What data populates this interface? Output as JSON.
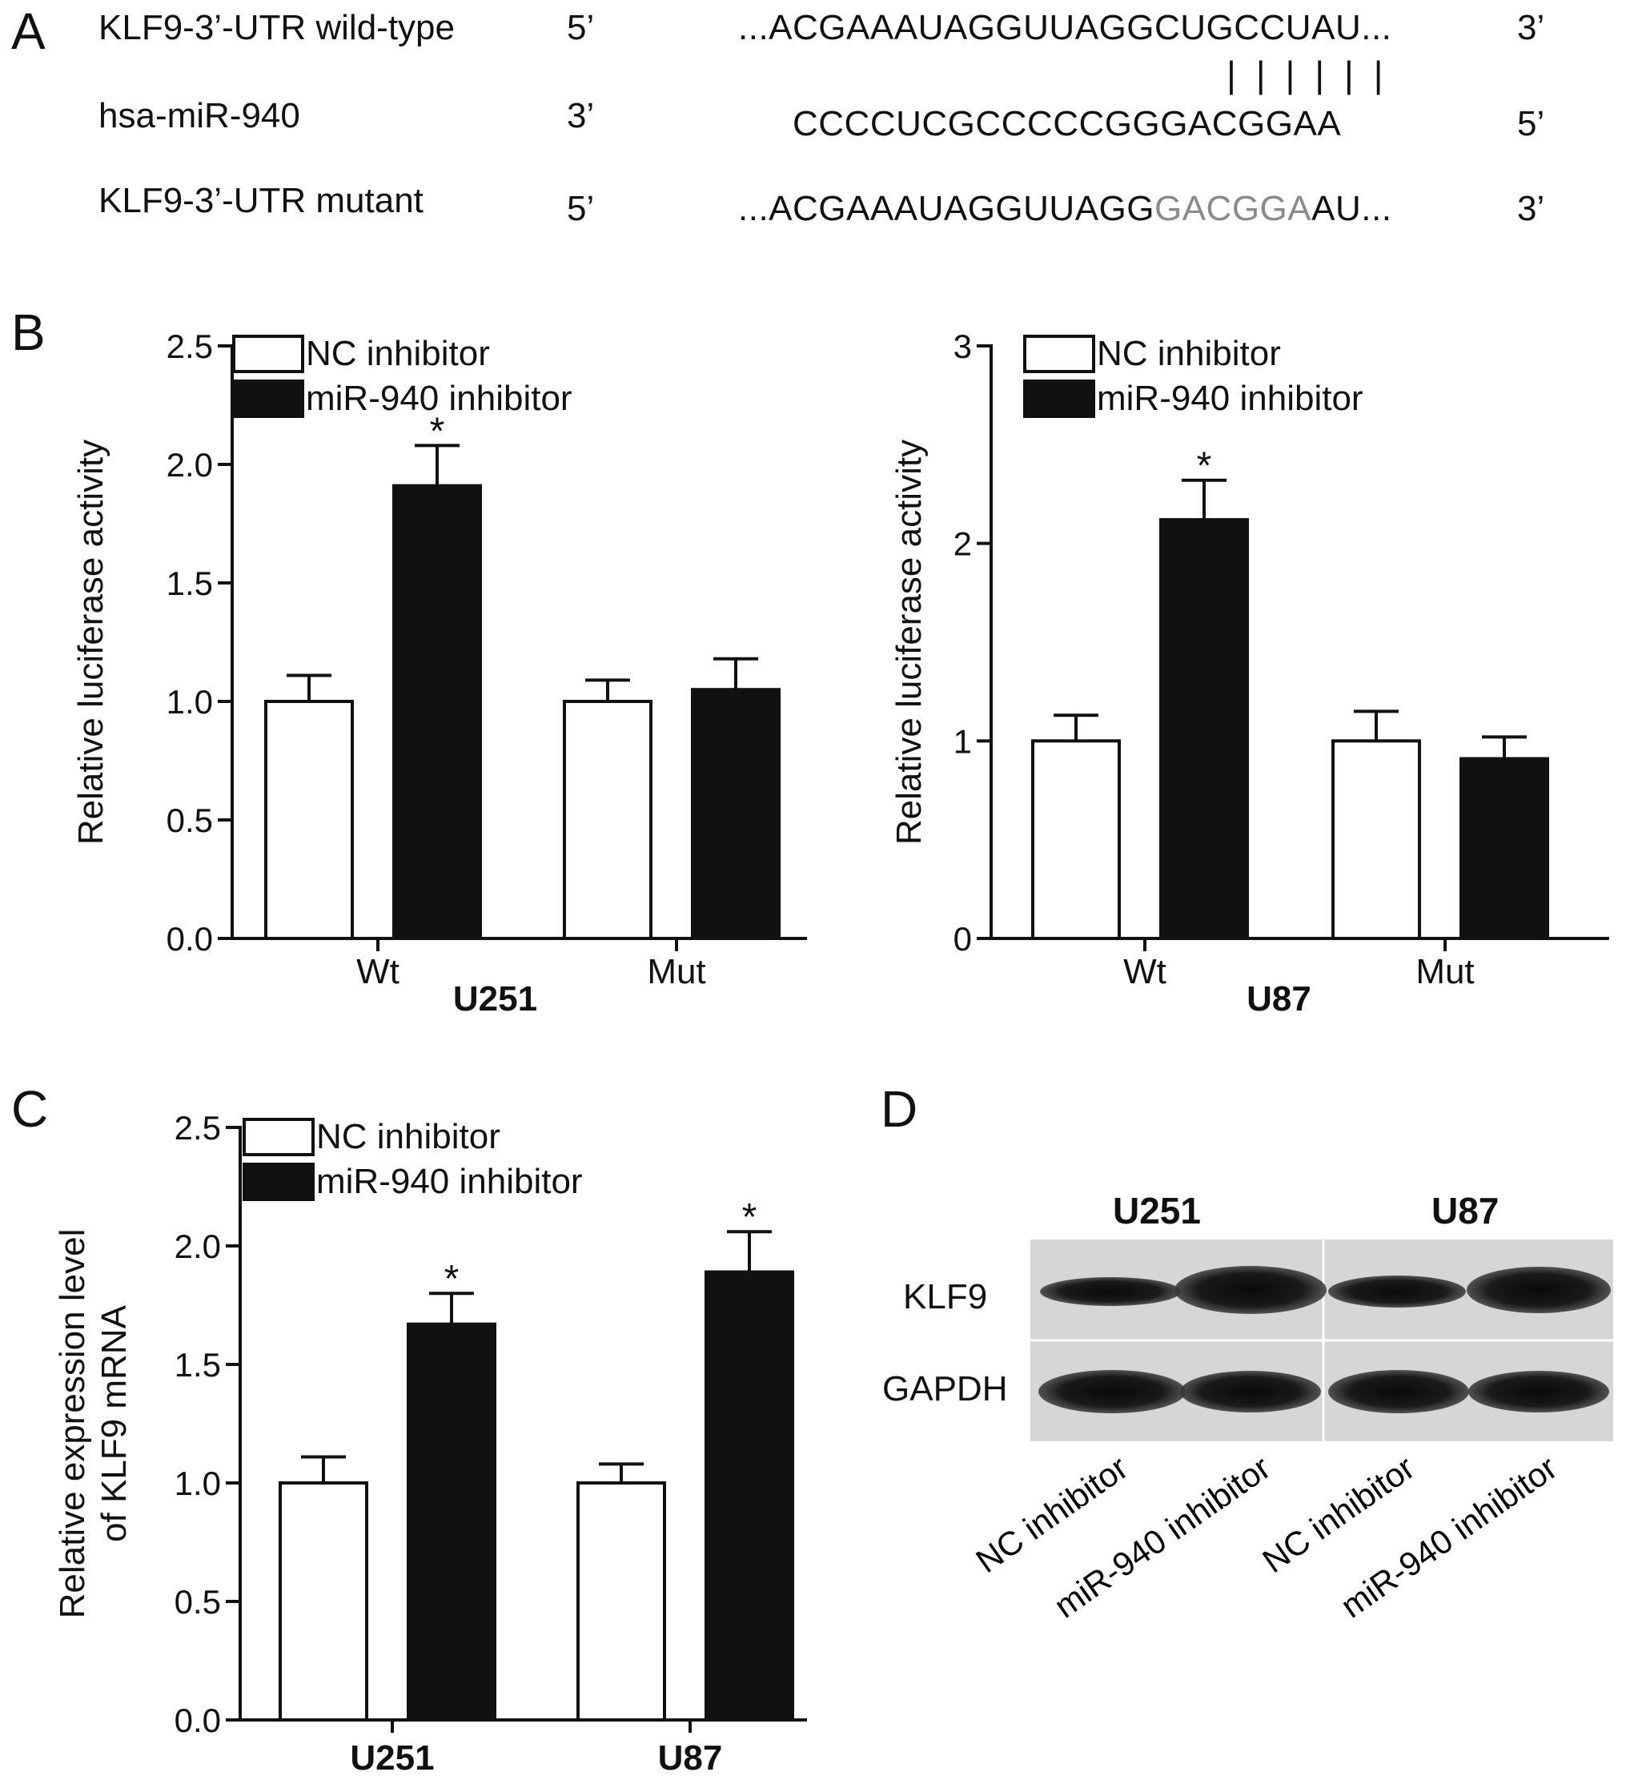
{
  "panel_a": {
    "label": "A",
    "rows": [
      {
        "name": "KLF9-3’-UTR  wild-type",
        "left_end": "5’",
        "prefix": "...ACGAAAUAGGUUAGG",
        "highlight": "",
        "core": "CUGCCU",
        "suffix": "AU...",
        "right_end": "3’"
      },
      {
        "name": "hsa-miR-940",
        "left_end": "3’",
        "sequence": "CCCCUCGCCCCCGGGACGGAA",
        "right_end": "5’"
      },
      {
        "name": "KLF9-3’-UTR mutant",
        "left_end": "5’",
        "prefix": "...ACGAAAUAGGUUAGG",
        "mutant": "GACGGA",
        "suffix": "AU...",
        "right_end": "3’"
      }
    ],
    "pairing": "| | | | | |"
  },
  "panel_b_label": "B",
  "panel_c_label": "C",
  "panel_d_label": "D",
  "chart_data": [
    {
      "type": "bar",
      "panel": "B-left",
      "group_title": "U251",
      "categories": [
        "Wt",
        "Mut"
      ],
      "series": [
        {
          "name": "NC inhibitor",
          "values": [
            1.0,
            1.0
          ],
          "errors": [
            0.11,
            0.09
          ],
          "color": "#ffffff"
        },
        {
          "name": "miR-940 inhibitor",
          "values": [
            1.91,
            1.05
          ],
          "errors": [
            0.17,
            0.13
          ],
          "color": "#111111"
        }
      ],
      "significance": [
        "*",
        ""
      ],
      "ylabel": "Relative luciferase activity",
      "ylim": [
        0,
        2.5
      ],
      "yticks": [
        "0.0",
        "0.5",
        "1.0",
        "1.5",
        "2.0",
        "2.5"
      ],
      "legend": "top-left"
    },
    {
      "type": "bar",
      "panel": "B-right",
      "group_title": "U87",
      "categories": [
        "Wt",
        "Mut"
      ],
      "series": [
        {
          "name": "NC inhibitor",
          "values": [
            1.0,
            1.0
          ],
          "errors": [
            0.13,
            0.15
          ],
          "color": "#ffffff"
        },
        {
          "name": "miR-940 inhibitor",
          "values": [
            2.12,
            0.91
          ],
          "errors": [
            0.2,
            0.11
          ],
          "color": "#111111"
        }
      ],
      "significance": [
        "*",
        ""
      ],
      "ylabel": "Relative luciferase activity",
      "ylim": [
        0,
        3
      ],
      "yticks": [
        "0",
        "1",
        "2",
        "3"
      ],
      "legend": "top-left"
    },
    {
      "type": "bar",
      "panel": "C",
      "group_title": "",
      "categories": [
        "U251",
        "U87"
      ],
      "series": [
        {
          "name": "NC inhibitor",
          "values": [
            1.0,
            1.0
          ],
          "errors": [
            0.11,
            0.08
          ],
          "color": "#ffffff"
        },
        {
          "name": "miR-940 inhibitor",
          "values": [
            1.67,
            1.89
          ],
          "errors": [
            0.13,
            0.17
          ],
          "color": "#111111"
        }
      ],
      "significance": [
        "*",
        "*"
      ],
      "ylabel": "Relative expression level of KLF9 mRNA",
      "ylabel_lines": [
        "Relative expression level",
        "of KLF9 mRNA"
      ],
      "ylim": [
        0,
        2.5
      ],
      "yticks": [
        "0.0",
        "0.5",
        "1.0",
        "1.5",
        "2.0",
        "2.5"
      ],
      "legend": "top-left"
    }
  ],
  "panel_d": {
    "cell_lines": [
      "U251",
      "U87"
    ],
    "proteins": [
      "KLF9",
      "GAPDH"
    ],
    "lanes": [
      "NC inhibitor",
      "miR-940 inhibitor",
      "NC inhibitor",
      "miR-940 inhibitor"
    ]
  }
}
